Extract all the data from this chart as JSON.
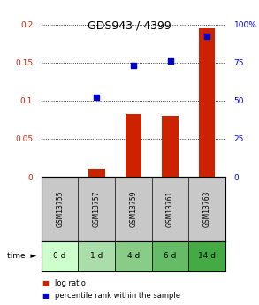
{
  "title": "GDS943 / 4399",
  "samples": [
    "GSM13755",
    "GSM13757",
    "GSM13759",
    "GSM13761",
    "GSM13763"
  ],
  "time_labels": [
    "0 d",
    "1 d",
    "4 d",
    "6 d",
    "14 d"
  ],
  "log_ratio": [
    0.0,
    0.01,
    0.083,
    0.08,
    0.195
  ],
  "percentile_rank": [
    null,
    52,
    73,
    76,
    92
  ],
  "ylim_left": [
    0,
    0.2
  ],
  "ylim_right": [
    0,
    100
  ],
  "yticks_left": [
    0,
    0.05,
    0.1,
    0.15,
    0.2
  ],
  "ytick_labels_left": [
    "0",
    "0.05",
    "0.1",
    "0.15",
    "0.2"
  ],
  "yticks_right": [
    0,
    25,
    50,
    75,
    100
  ],
  "ytick_labels_right": [
    "0",
    "25",
    "50",
    "75",
    "100%"
  ],
  "bar_color": "#cc2200",
  "point_color": "#0000cc",
  "grid_color": "#000000",
  "sample_bg_color": "#c8c8c8",
  "time_bg_colors": [
    "#ccffcc",
    "#aaddaa",
    "#88cc88",
    "#66bb66",
    "#44aa44"
  ],
  "title_fontsize": 9,
  "tick_fontsize": 6.5,
  "bar_width": 0.45,
  "point_size": 18
}
